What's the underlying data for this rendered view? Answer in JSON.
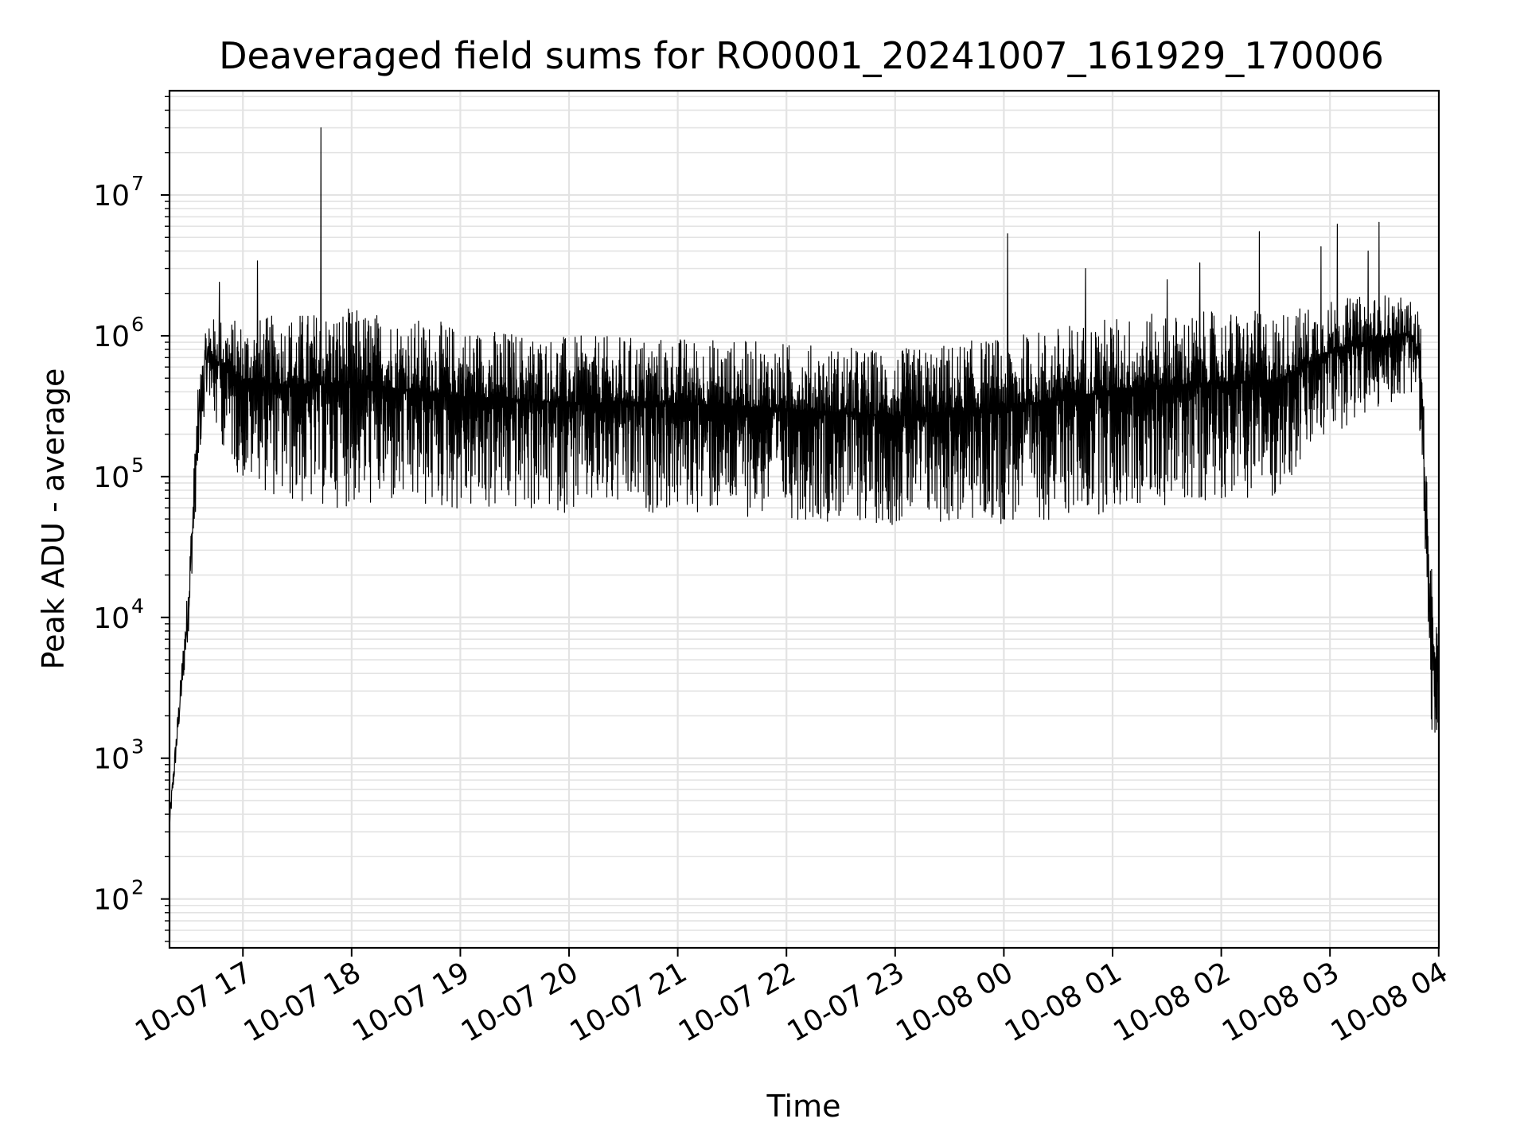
{
  "chart_data": {
    "type": "line",
    "title": "Deaveraged field sums for RO0001_20241007_161929_170006",
    "xlabel": "Time",
    "ylabel": "Peak ADU - average",
    "yscale": "log",
    "ylim": [
      45,
      55000000
    ],
    "xlim": [
      "2024-10-07 16:19:29",
      "2024-10-08 04:00:06"
    ],
    "grid": "on (major and minor)",
    "x_ticks": [
      "10-07 17",
      "10-07 18",
      "10-07 19",
      "10-07 20",
      "10-07 21",
      "10-07 22",
      "10-07 23",
      "10-08 00",
      "10-08 01",
      "10-08 02",
      "10-08 03",
      "10-08 04"
    ],
    "y_ticks": [
      {
        "base": "10",
        "exp": "2",
        "value": 100
      },
      {
        "base": "10",
        "exp": "3",
        "value": 1000
      },
      {
        "base": "10",
        "exp": "4",
        "value": 10000
      },
      {
        "base": "10",
        "exp": "5",
        "value": 100000
      },
      {
        "base": "10",
        "exp": "6",
        "value": 1000000
      },
      {
        "base": "10",
        "exp": "7",
        "value": 10000000
      }
    ],
    "line_color": "#000000",
    "envelope": {
      "x": [
        "2024-10-07 16:19:29",
        "2024-10-07 16:25",
        "2024-10-07 16:30",
        "2024-10-07 16:35",
        "2024-10-07 16:40",
        "2024-10-07 16:45",
        "2024-10-07 17:00",
        "2024-10-07 17:30",
        "2024-10-07 18:00",
        "2024-10-07 19:00",
        "2024-10-07 20:00",
        "2024-10-07 21:00",
        "2024-10-07 22:00",
        "2024-10-07 23:00",
        "2024-10-08 00:00",
        "2024-10-08 01:00",
        "2024-10-08 02:00",
        "2024-10-08 02:30",
        "2024-10-08 03:00",
        "2024-10-08 03:30",
        "2024-10-08 03:45",
        "2024-10-08 03:50",
        "2024-10-08 03:55",
        "2024-10-08 04:00:06"
      ],
      "upper": [
        400,
        3000,
        20000,
        400000,
        1200000,
        1400000,
        1300000,
        1500000,
        1600000,
        1200000,
        1000000,
        1000000,
        900000,
        800000,
        1000000,
        1400000,
        1500000,
        1500000,
        1800000,
        2000000,
        1800000,
        1500000,
        30000,
        7000
      ],
      "lower": [
        300,
        1800,
        8000,
        100000,
        400000,
        200000,
        90000,
        60000,
        60000,
        55000,
        55000,
        55000,
        50000,
        45000,
        45000,
        55000,
        70000,
        70000,
        200000,
        300000,
        400000,
        200000,
        1500,
        1000
      ]
    },
    "spikes": [
      {
        "x": "2024-10-07 16:47",
        "y": 2400000
      },
      {
        "x": "2024-10-07 17:08",
        "y": 3400000
      },
      {
        "x": "2024-10-07 17:43",
        "y": 30000000
      },
      {
        "x": "2024-10-08 00:02",
        "y": 5300000
      },
      {
        "x": "2024-10-08 00:45",
        "y": 3000000
      },
      {
        "x": "2024-10-08 01:30",
        "y": 2500000
      },
      {
        "x": "2024-10-08 01:48",
        "y": 3300000
      },
      {
        "x": "2024-10-08 02:21",
        "y": 5500000
      },
      {
        "x": "2024-10-08 02:55",
        "y": 4300000
      },
      {
        "x": "2024-10-08 03:04",
        "y": 6200000
      },
      {
        "x": "2024-10-08 03:21",
        "y": 4000000
      },
      {
        "x": "2024-10-08 03:27",
        "y": 6400000
      }
    ]
  }
}
